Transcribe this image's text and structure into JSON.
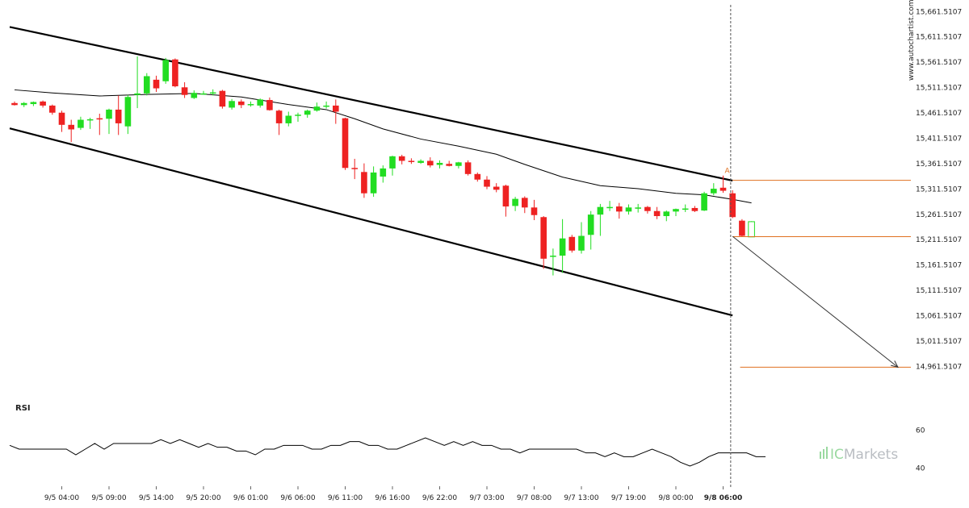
{
  "watermark": "www.autochartist.com",
  "brand": {
    "prefix": "IC",
    "name": "Markets"
  },
  "colors": {
    "up": "#22dd22",
    "down": "#ee2222",
    "channel": "#000000",
    "ma": "#000000",
    "level": "#e07020",
    "pattern_marker": "#e07020",
    "rsi": "#000000",
    "vline": "#555555"
  },
  "chart_data": {
    "type": "candlestick",
    "y_axis": {
      "min": 14941.5107,
      "max": 15671.5107,
      "ticks": [
        15661.5107,
        15611.5107,
        15561.5107,
        15511.5107,
        15461.5107,
        15411.5107,
        15361.5107,
        15311.5107,
        15261.5107,
        15211.5107,
        15161.5107,
        15111.5107,
        15061.5107,
        15011.5107,
        14961.5107
      ],
      "tick_labels": [
        "15,661.5107",
        "15,611.5107",
        "15,561.5107",
        "15,511.5107",
        "15,461.5107",
        "15,411.5107",
        "15,361.5107",
        "15,311.5107",
        "15,261.5107",
        "15,211.5107",
        "15,161.5107",
        "15,111.5107",
        "15,061.5107",
        "15,011.5107",
        "14,961.5107"
      ]
    },
    "x_axis": {
      "bar_count": 80,
      "labels": [
        {
          "bar": 5,
          "text": "9/5 04:00"
        },
        {
          "bar": 10,
          "text": "9/5 09:00"
        },
        {
          "bar": 15,
          "text": "9/5 14:00"
        },
        {
          "bar": 20,
          "text": "9/5 20:00"
        },
        {
          "bar": 25,
          "text": "9/6 01:00"
        },
        {
          "bar": 30,
          "text": "9/6 06:00"
        },
        {
          "bar": 35,
          "text": "9/6 11:00"
        },
        {
          "bar": 40,
          "text": "9/6 16:00"
        },
        {
          "bar": 45,
          "text": "9/6 22:00"
        },
        {
          "bar": 50,
          "text": "9/7 03:00"
        },
        {
          "bar": 55,
          "text": "9/7 08:00"
        },
        {
          "bar": 60,
          "text": "9/7 13:00"
        },
        {
          "bar": 65,
          "text": "9/7 19:00"
        },
        {
          "bar": 70,
          "text": "9/8 00:00"
        },
        {
          "bar": 75,
          "text": "9/8 06:00",
          "bold": true
        }
      ]
    },
    "candles": [
      {
        "o": 15481,
        "h": 15484,
        "l": 15476,
        "c": 15477
      },
      {
        "o": 15477,
        "h": 15483,
        "l": 15473,
        "c": 15481
      },
      {
        "o": 15479,
        "h": 15484,
        "l": 15475,
        "c": 15483
      },
      {
        "o": 15484,
        "h": 15486,
        "l": 15472,
        "c": 15476
      },
      {
        "o": 15476,
        "h": 15478,
        "l": 15458,
        "c": 15462
      },
      {
        "o": 15462,
        "h": 15466,
        "l": 15424,
        "c": 15438
      },
      {
        "o": 15438,
        "h": 15448,
        "l": 15404,
        "c": 15429
      },
      {
        "o": 15432,
        "h": 15454,
        "l": 15428,
        "c": 15448
      },
      {
        "o": 15449,
        "h": 15452,
        "l": 15430,
        "c": 15449
      },
      {
        "o": 15451,
        "h": 15460,
        "l": 15418,
        "c": 15449
      },
      {
        "o": 15450,
        "h": 15470,
        "l": 15420,
        "c": 15468
      },
      {
        "o": 15468,
        "h": 15496,
        "l": 15418,
        "c": 15441
      },
      {
        "o": 15435,
        "h": 15497,
        "l": 15420,
        "c": 15493
      },
      {
        "o": 15497,
        "h": 15573,
        "l": 15471,
        "c": 15500
      },
      {
        "o": 15500,
        "h": 15540,
        "l": 15496,
        "c": 15534
      },
      {
        "o": 15527,
        "h": 15535,
        "l": 15503,
        "c": 15510
      },
      {
        "o": 15524,
        "h": 15570,
        "l": 15519,
        "c": 15566
      },
      {
        "o": 15567,
        "h": 15569,
        "l": 15512,
        "c": 15514
      },
      {
        "o": 15512,
        "h": 15522,
        "l": 15491,
        "c": 15497
      },
      {
        "o": 15491,
        "h": 15506,
        "l": 15489,
        "c": 15501
      },
      {
        "o": 15500,
        "h": 15505,
        "l": 15498,
        "c": 15500
      },
      {
        "o": 15500,
        "h": 15508,
        "l": 15496,
        "c": 15502
      },
      {
        "o": 15505,
        "h": 15507,
        "l": 15470,
        "c": 15474
      },
      {
        "o": 15472,
        "h": 15489,
        "l": 15468,
        "c": 15485
      },
      {
        "o": 15484,
        "h": 15488,
        "l": 15471,
        "c": 15477
      },
      {
        "o": 15477,
        "h": 15484,
        "l": 15474,
        "c": 15479
      },
      {
        "o": 15476,
        "h": 15490,
        "l": 15472,
        "c": 15488
      },
      {
        "o": 15487,
        "h": 15492,
        "l": 15466,
        "c": 15467
      },
      {
        "o": 15466,
        "h": 15468,
        "l": 15418,
        "c": 15441
      },
      {
        "o": 15441,
        "h": 15464,
        "l": 15435,
        "c": 15456
      },
      {
        "o": 15456,
        "h": 15462,
        "l": 15444,
        "c": 15458
      },
      {
        "o": 15458,
        "h": 15468,
        "l": 15452,
        "c": 15466
      },
      {
        "o": 15466,
        "h": 15482,
        "l": 15464,
        "c": 15474
      },
      {
        "o": 15474,
        "h": 15484,
        "l": 15470,
        "c": 15476
      },
      {
        "o": 15476,
        "h": 15488,
        "l": 15440,
        "c": 15464
      },
      {
        "o": 15451,
        "h": 15452,
        "l": 15349,
        "c": 15353
      },
      {
        "o": 15353,
        "h": 15371,
        "l": 15331,
        "c": 15351
      },
      {
        "o": 15345,
        "h": 15362,
        "l": 15294,
        "c": 15303
      },
      {
        "o": 15303,
        "h": 15356,
        "l": 15296,
        "c": 15344
      },
      {
        "o": 15336,
        "h": 15358,
        "l": 15324,
        "c": 15352
      },
      {
        "o": 15352,
        "h": 15377,
        "l": 15338,
        "c": 15376
      },
      {
        "o": 15376,
        "h": 15379,
        "l": 15360,
        "c": 15367
      },
      {
        "o": 15367,
        "h": 15372,
        "l": 15361,
        "c": 15366
      },
      {
        "o": 15363,
        "h": 15370,
        "l": 15361,
        "c": 15367
      },
      {
        "o": 15367,
        "h": 15374,
        "l": 15354,
        "c": 15358
      },
      {
        "o": 15359,
        "h": 15368,
        "l": 15352,
        "c": 15363
      },
      {
        "o": 15361,
        "h": 15367,
        "l": 15356,
        "c": 15357
      },
      {
        "o": 15357,
        "h": 15365,
        "l": 15352,
        "c": 15364
      },
      {
        "o": 15364,
        "h": 15368,
        "l": 15338,
        "c": 15341
      },
      {
        "o": 15341,
        "h": 15344,
        "l": 15326,
        "c": 15330
      },
      {
        "o": 15330,
        "h": 15337,
        "l": 15311,
        "c": 15316
      },
      {
        "o": 15316,
        "h": 15323,
        "l": 15305,
        "c": 15310
      },
      {
        "o": 15318,
        "h": 15320,
        "l": 15257,
        "c": 15277
      },
      {
        "o": 15278,
        "h": 15296,
        "l": 15268,
        "c": 15292
      },
      {
        "o": 15294,
        "h": 15297,
        "l": 15264,
        "c": 15275
      },
      {
        "o": 15275,
        "h": 15290,
        "l": 15250,
        "c": 15260
      },
      {
        "o": 15256,
        "h": 15258,
        "l": 15154,
        "c": 15174
      },
      {
        "o": 15180,
        "h": 15194,
        "l": 15141,
        "c": 15180
      },
      {
        "o": 15180,
        "h": 15252,
        "l": 15146,
        "c": 15214
      },
      {
        "o": 15217,
        "h": 15221,
        "l": 15186,
        "c": 15190
      },
      {
        "o": 15190,
        "h": 15246,
        "l": 15184,
        "c": 15219
      },
      {
        "o": 15221,
        "h": 15268,
        "l": 15192,
        "c": 15261
      },
      {
        "o": 15261,
        "h": 15282,
        "l": 15219,
        "c": 15276
      },
      {
        "o": 15276,
        "h": 15288,
        "l": 15268,
        "c": 15276
      },
      {
        "o": 15277,
        "h": 15284,
        "l": 15253,
        "c": 15267
      },
      {
        "o": 15267,
        "h": 15281,
        "l": 15261,
        "c": 15275
      },
      {
        "o": 15275,
        "h": 15282,
        "l": 15265,
        "c": 15275
      },
      {
        "o": 15276,
        "h": 15278,
        "l": 15263,
        "c": 15268
      },
      {
        "o": 15268,
        "h": 15276,
        "l": 15252,
        "c": 15258
      },
      {
        "o": 15258,
        "h": 15269,
        "l": 15248,
        "c": 15267
      },
      {
        "o": 15267,
        "h": 15273,
        "l": 15258,
        "c": 15272
      },
      {
        "o": 15272,
        "h": 15281,
        "l": 15266,
        "c": 15273
      },
      {
        "o": 15274,
        "h": 15278,
        "l": 15266,
        "c": 15268
      },
      {
        "o": 15269,
        "h": 15306,
        "l": 15268,
        "c": 15303
      },
      {
        "o": 15303,
        "h": 15323,
        "l": 15299,
        "c": 15312
      },
      {
        "o": 15314,
        "h": 15338,
        "l": 15304,
        "c": 15308
      },
      {
        "o": 15303,
        "h": 15309,
        "l": 15254,
        "c": 15256
      },
      {
        "o": 15249,
        "h": 15252,
        "l": 15217,
        "c": 15219
      },
      {
        "o": 15217,
        "h": 15248,
        "l": 15217,
        "c": 15247,
        "hollow": true
      }
    ],
    "moving_average": [
      [
        0,
        15507
      ],
      [
        4,
        15501
      ],
      [
        9,
        15495
      ],
      [
        14,
        15498
      ],
      [
        19,
        15500
      ],
      [
        24,
        15493
      ],
      [
        29,
        15478
      ],
      [
        33,
        15468
      ],
      [
        36,
        15450
      ],
      [
        39,
        15430
      ],
      [
        43,
        15410
      ],
      [
        47,
        15396
      ],
      [
        51,
        15380
      ],
      [
        54,
        15360
      ],
      [
        58,
        15335
      ],
      [
        62,
        15318
      ],
      [
        66,
        15312
      ],
      [
        70,
        15303
      ],
      [
        73,
        15300
      ],
      [
        76,
        15291
      ],
      [
        78,
        15284
      ]
    ],
    "channel": {
      "upper": [
        [
          0,
          15631
        ],
        [
          76,
          15328
        ]
      ],
      "lower": [
        [
          0,
          15431
        ],
        [
          76,
          15062
        ]
      ]
    },
    "levels": [
      {
        "price": 15328.5,
        "from_bar": 76,
        "to": "axis"
      },
      {
        "price": 15217.5,
        "from_bar": 76,
        "to": "axis"
      },
      {
        "price": 14960.0,
        "from_bar": 76.8,
        "to": "axis"
      }
    ],
    "pattern_point": {
      "label": "A",
      "bar": 75,
      "price": 15338
    },
    "forecast_arrow": {
      "from": [
        76,
        15218
      ],
      "to": [
        93.5,
        14960
      ]
    },
    "current_bar": 75.8,
    "rsi": {
      "title": "RSI",
      "min": 35,
      "max": 65,
      "ticks": [
        60,
        40
      ],
      "values": [
        52,
        50,
        50,
        50,
        50,
        50,
        50,
        47,
        50,
        53,
        50,
        53,
        53,
        53,
        53,
        53,
        55,
        53,
        55,
        53,
        51,
        53,
        51,
        51,
        49,
        49,
        47,
        50,
        50,
        52,
        52,
        52,
        50,
        50,
        52,
        52,
        54,
        54,
        52,
        52,
        50,
        50,
        52,
        54,
        56,
        54,
        52,
        54,
        52,
        54,
        52,
        52,
        50,
        50,
        48,
        50,
        50,
        50,
        50,
        50,
        50,
        48,
        48,
        46,
        48,
        46,
        46,
        48,
        50,
        48,
        46,
        43,
        41,
        43,
        46,
        48,
        48,
        48,
        48,
        46,
        46
      ]
    }
  }
}
